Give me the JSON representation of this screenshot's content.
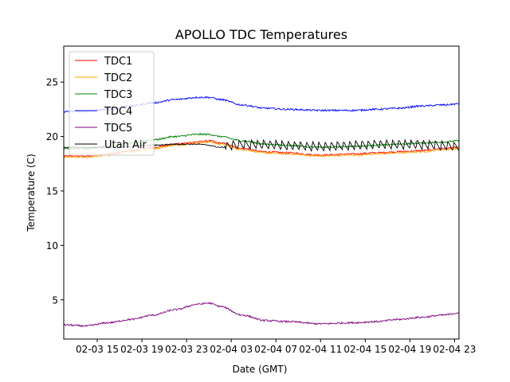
{
  "chart_data": {
    "type": "line",
    "title": "APOLLO TDC Temperatures",
    "xlabel": "Date (GMT)",
    "ylabel": "Temperature (C)",
    "xlim": [
      12.0,
      47.4
    ],
    "ylim": [
      1.4,
      28.3
    ],
    "x_unit": "hours since 02-03 00:00 GMT",
    "x_ticks": [
      {
        "value": 15,
        "label": "02-03 15"
      },
      {
        "value": 19,
        "label": "02-03 19"
      },
      {
        "value": 23,
        "label": "02-03 23"
      },
      {
        "value": 27,
        "label": "02-04 03"
      },
      {
        "value": 31,
        "label": "02-04 07"
      },
      {
        "value": 35,
        "label": "02-04 11"
      },
      {
        "value": 39,
        "label": "02-04 15"
      },
      {
        "value": 43,
        "label": "02-04 19"
      },
      {
        "value": 47,
        "label": "02-04 23"
      }
    ],
    "y_ticks": [
      {
        "value": 5,
        "label": "5"
      },
      {
        "value": 10,
        "label": "10"
      },
      {
        "value": 15,
        "label": "15"
      },
      {
        "value": 20,
        "label": "20"
      },
      {
        "value": 25,
        "label": "25"
      }
    ],
    "legend_position": "top-left",
    "series": [
      {
        "name": "TDC1",
        "color": "#ff0000",
        "noise": 0.08,
        "sawtooth": false,
        "x": [
          12,
          14,
          16,
          18,
          20,
          22,
          24,
          25,
          26,
          28,
          30,
          32,
          35,
          38,
          40,
          42,
          44,
          46,
          47.4
        ],
        "y": [
          18.2,
          18.2,
          18.4,
          18.7,
          19.0,
          19.3,
          19.5,
          19.6,
          19.4,
          18.9,
          18.6,
          18.5,
          18.3,
          18.4,
          18.5,
          18.6,
          18.7,
          18.9,
          19.0
        ]
      },
      {
        "name": "TDC2",
        "color": "#ffa500",
        "noise": 0.08,
        "sawtooth": false,
        "x": [
          12,
          14,
          16,
          18,
          20,
          22,
          24,
          25,
          26,
          28,
          30,
          32,
          35,
          38,
          40,
          42,
          44,
          46,
          47.4
        ],
        "y": [
          18.1,
          18.1,
          18.3,
          18.6,
          18.9,
          19.2,
          19.4,
          19.5,
          19.3,
          18.8,
          18.5,
          18.4,
          18.2,
          18.3,
          18.4,
          18.5,
          18.6,
          18.8,
          18.9
        ]
      },
      {
        "name": "TDC3",
        "color": "#008000",
        "noise": 0.08,
        "sawtooth": false,
        "x": [
          12,
          14,
          16,
          18,
          20,
          22,
          24,
          25,
          26,
          28,
          30,
          32,
          35,
          38,
          40,
          42,
          44,
          46,
          47.4
        ],
        "y": [
          18.9,
          18.9,
          19.1,
          19.4,
          19.7,
          20.0,
          20.2,
          20.2,
          20.0,
          19.6,
          19.3,
          19.2,
          19.0,
          19.1,
          19.2,
          19.3,
          19.4,
          19.5,
          19.6
        ]
      },
      {
        "name": "TDC4",
        "color": "#0000ff",
        "noise": 0.08,
        "sawtooth": false,
        "x": [
          12,
          14,
          16,
          18,
          20,
          22,
          24,
          25,
          26,
          28,
          30,
          32,
          35,
          38,
          40,
          42,
          44,
          46,
          47.4
        ],
        "y": [
          22.3,
          22.3,
          22.5,
          22.8,
          23.1,
          23.4,
          23.6,
          23.6,
          23.4,
          22.9,
          22.6,
          22.5,
          22.4,
          22.4,
          22.5,
          22.6,
          22.8,
          22.9,
          23.0
        ]
      },
      {
        "name": "TDC5",
        "color": "#800080",
        "noise": 0.08,
        "sawtooth": false,
        "x": [
          12,
          14,
          16,
          18,
          20,
          22,
          24,
          25,
          26,
          28,
          30,
          32,
          35,
          38,
          40,
          42,
          44,
          46,
          47.4
        ],
        "y": [
          2.7,
          2.6,
          2.9,
          3.2,
          3.6,
          4.1,
          4.6,
          4.7,
          4.4,
          3.6,
          3.1,
          3.0,
          2.8,
          2.9,
          3.0,
          3.2,
          3.4,
          3.6,
          3.8
        ]
      },
      {
        "name": "Utah Air",
        "color": "#000000",
        "noise": 0.05,
        "sawtooth": true,
        "x": [
          12,
          14,
          16,
          18,
          20,
          22,
          24,
          25,
          26,
          28,
          30,
          32,
          35,
          38,
          40,
          42,
          44,
          46,
          47.4
        ],
        "y": [
          19.0,
          19.0,
          19.0,
          19.1,
          19.2,
          19.3,
          19.3,
          19.2,
          19.0,
          19.2,
          19.2,
          19.1,
          19.0,
          19.1,
          19.2,
          19.2,
          19.2,
          19.1,
          19.0
        ]
      }
    ]
  }
}
